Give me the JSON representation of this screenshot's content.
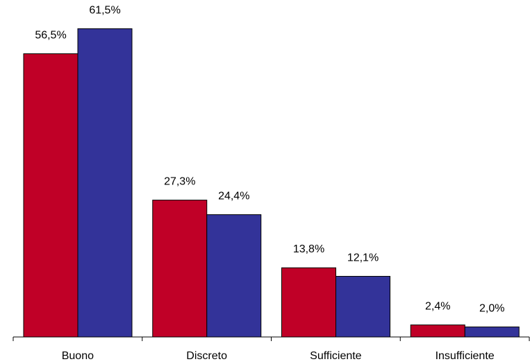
{
  "chart_data": {
    "type": "bar",
    "categories": [
      "Buono",
      "Discreto",
      "Sufficiente",
      "Insufficiente"
    ],
    "series": [
      {
        "values": [
          56.5,
          27.3,
          13.8,
          2.4
        ],
        "color": "#C00027",
        "labels": [
          "56,5%",
          "27,3%",
          "13,8%",
          "2,4%"
        ]
      },
      {
        "values": [
          61.5,
          24.4,
          12.1,
          2.0
        ],
        "color": "#333399",
        "labels": [
          "61,5%",
          "24,4%",
          "12,1%",
          "2,0%"
        ]
      }
    ],
    "ylim": [
      0,
      65
    ],
    "grid": false,
    "legend": false
  }
}
